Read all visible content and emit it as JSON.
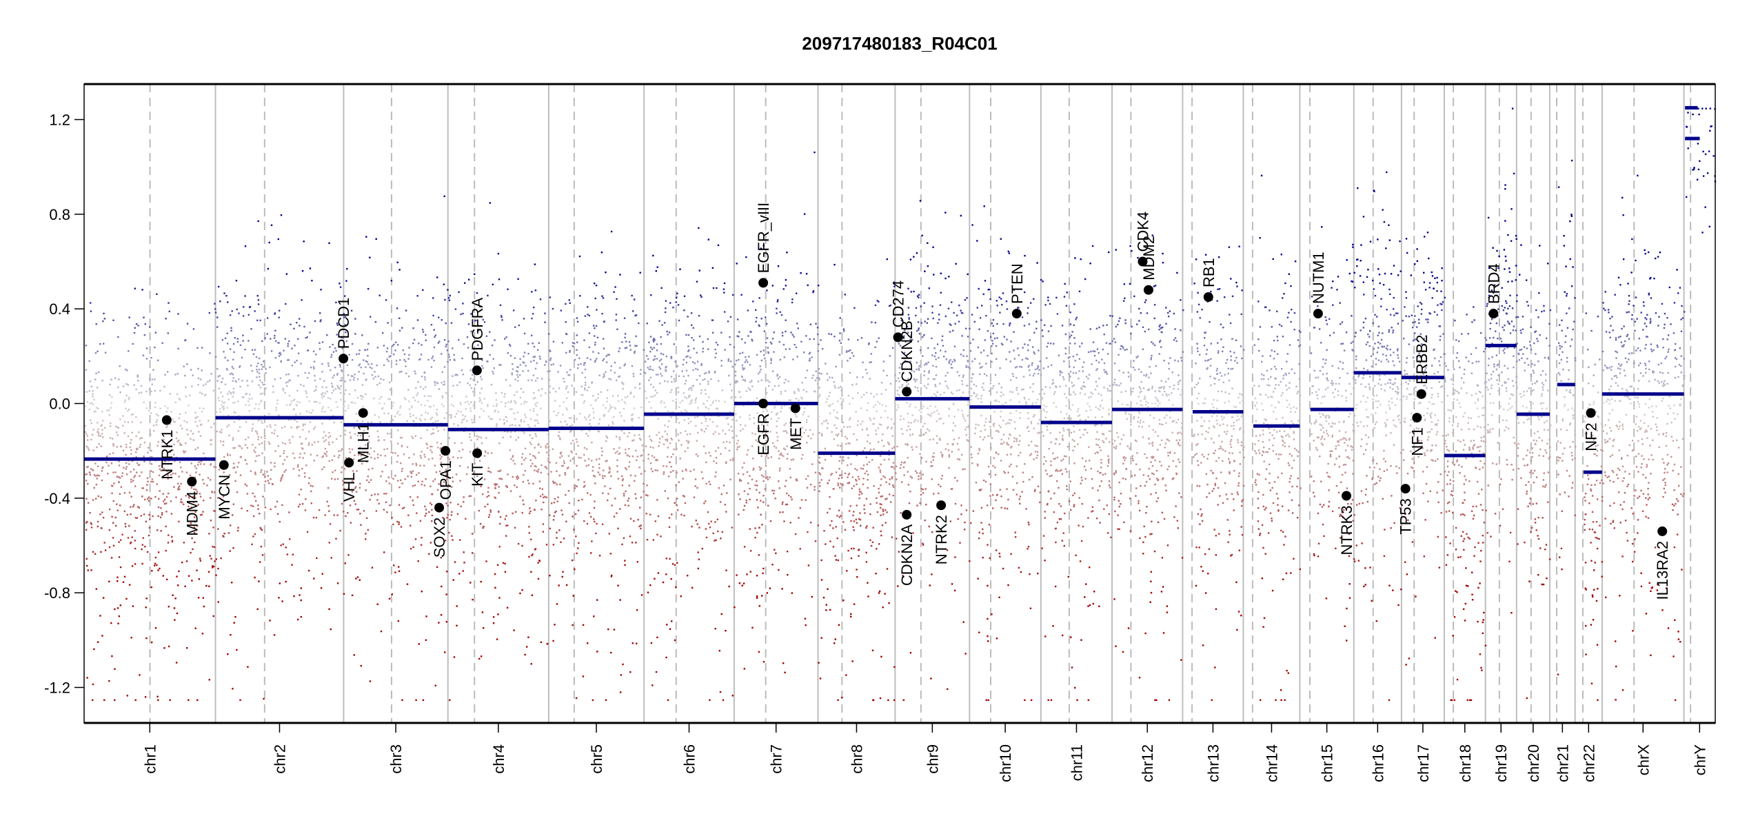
{
  "chart_data": {
    "type": "scatter",
    "title": "209717480183_R04C01",
    "xlabel": "",
    "ylabel": "",
    "ylim": [
      -1.35,
      1.35
    ],
    "clip": [
      -1.25,
      1.25
    ],
    "yticks": [
      -1.2,
      -0.8,
      -0.4,
      0.0,
      0.4,
      0.8,
      1.2
    ],
    "ytick_labels": [
      "-1.2",
      "-0.8",
      "-0.4",
      "0.0",
      "0.4",
      "0.8",
      "1.2"
    ],
    "grid": "chromosome boundaries (solid) and centromeres (dashed)",
    "colors": {
      "gain": "#00008b",
      "neutral": "#d3d3d3",
      "loss": "#a00000",
      "segment": "#00008b",
      "gene": "#000000",
      "boundary": "#bebebe"
    },
    "chromosomes": [
      {
        "name": "chr1",
        "length_mb": 249.3,
        "centromere_mb": 125.0,
        "segments": [
          {
            "start": 0,
            "end": 249.3,
            "mean": -0.235
          }
        ]
      },
      {
        "name": "chr2",
        "length_mb": 243.2,
        "centromere_mb": 93.3,
        "segments": [
          {
            "start": 0,
            "end": 243.2,
            "mean": -0.06
          }
        ]
      },
      {
        "name": "chr3",
        "length_mb": 198.0,
        "centromere_mb": 91.0,
        "segments": [
          {
            "start": 0,
            "end": 198.0,
            "mean": -0.09
          }
        ]
      },
      {
        "name": "chr4",
        "length_mb": 191.2,
        "centromere_mb": 50.4,
        "segments": [
          {
            "start": 0,
            "end": 191.2,
            "mean": -0.11
          }
        ]
      },
      {
        "name": "chr5",
        "length_mb": 180.9,
        "centromere_mb": 48.4,
        "segments": [
          {
            "start": 0,
            "end": 180.9,
            "mean": -0.105
          }
        ]
      },
      {
        "name": "chr6",
        "length_mb": 171.1,
        "centromere_mb": 61.0,
        "segments": [
          {
            "start": 0,
            "end": 171.1,
            "mean": -0.045
          }
        ]
      },
      {
        "name": "chr7",
        "length_mb": 159.1,
        "centromere_mb": 59.9,
        "segments": [
          {
            "start": 0,
            "end": 159.1,
            "mean": 0.0
          }
        ]
      },
      {
        "name": "chr8",
        "length_mb": 146.4,
        "centromere_mb": 45.6,
        "segments": [
          {
            "start": 0,
            "end": 146.4,
            "mean": -0.21
          }
        ]
      },
      {
        "name": "chr9",
        "length_mb": 141.2,
        "centromere_mb": 49.0,
        "segments": [
          {
            "start": 0,
            "end": 141.2,
            "mean": 0.02
          }
        ]
      },
      {
        "name": "chr10",
        "length_mb": 135.5,
        "centromere_mb": 40.2,
        "segments": [
          {
            "start": 0,
            "end": 135.5,
            "mean": -0.015
          }
        ]
      },
      {
        "name": "chr11",
        "length_mb": 135.0,
        "centromere_mb": 53.7,
        "segments": [
          {
            "start": 0,
            "end": 135.0,
            "mean": -0.08
          }
        ]
      },
      {
        "name": "chr12",
        "length_mb": 133.9,
        "centromere_mb": 35.8,
        "segments": [
          {
            "start": 0,
            "end": 133.9,
            "mean": -0.025
          }
        ]
      },
      {
        "name": "chr13",
        "length_mb": 115.2,
        "centromere_mb": 17.9,
        "segments": [
          {
            "start": 19,
            "end": 115.2,
            "mean": -0.035
          }
        ]
      },
      {
        "name": "chr14",
        "length_mb": 107.3,
        "centromere_mb": 17.6,
        "segments": [
          {
            "start": 19,
            "end": 107.3,
            "mean": -0.095
          }
        ]
      },
      {
        "name": "chr15",
        "length_mb": 102.5,
        "centromere_mb": 19.0,
        "segments": [
          {
            "start": 20,
            "end": 102.5,
            "mean": -0.025
          }
        ]
      },
      {
        "name": "chr16",
        "length_mb": 90.4,
        "centromere_mb": 36.6,
        "segments": [
          {
            "start": 0,
            "end": 90.4,
            "mean": 0.13
          }
        ]
      },
      {
        "name": "chr17",
        "length_mb": 81.2,
        "centromere_mb": 24.0,
        "segments": [
          {
            "start": 0,
            "end": 81.2,
            "mean": 0.11
          }
        ]
      },
      {
        "name": "chr18",
        "length_mb": 78.1,
        "centromere_mb": 17.2,
        "segments": [
          {
            "start": 0,
            "end": 78.1,
            "mean": -0.22
          }
        ]
      },
      {
        "name": "chr19",
        "length_mb": 59.1,
        "centromere_mb": 26.5,
        "segments": [
          {
            "start": 0,
            "end": 59.1,
            "mean": 0.245
          }
        ]
      },
      {
        "name": "chr20",
        "length_mb": 63.0,
        "centromere_mb": 27.5,
        "segments": [
          {
            "start": 0,
            "end": 63.0,
            "mean": -0.045
          }
        ]
      },
      {
        "name": "chr21",
        "length_mb": 48.1,
        "centromere_mb": 13.2,
        "segments": [
          {
            "start": 14,
            "end": 48.1,
            "mean": 0.08
          }
        ]
      },
      {
        "name": "chr22",
        "length_mb": 51.3,
        "centromere_mb": 14.7,
        "segments": [
          {
            "start": 16,
            "end": 51.3,
            "mean": -0.29
          }
        ]
      },
      {
        "name": "chrX",
        "length_mb": 155.3,
        "centromere_mb": 60.6,
        "segments": [
          {
            "start": 0,
            "end": 155.3,
            "mean": 0.04
          }
        ]
      },
      {
        "name": "chrY",
        "length_mb": 59.4,
        "centromere_mb": 12.5,
        "segments": [
          {
            "start": 2,
            "end": 26,
            "mean": 1.25
          },
          {
            "start": 2,
            "end": 30,
            "mean": 1.12
          }
        ]
      }
    ],
    "genes": [
      {
        "label": "NTRK1",
        "chr": "chr1",
        "pos_mb": 156.8,
        "value": -0.07
      },
      {
        "label": "MDM4",
        "chr": "chr1",
        "pos_mb": 204.5,
        "value": -0.33
      },
      {
        "label": "MYCN",
        "chr": "chr2",
        "pos_mb": 16.0,
        "value": -0.26
      },
      {
        "label": "PDCD1",
        "chr": "chr2",
        "pos_mb": 242.8,
        "value": 0.19
      },
      {
        "label": "VHL",
        "chr": "chr3",
        "pos_mb": 10.2,
        "value": -0.25
      },
      {
        "label": "MLH1",
        "chr": "chr3",
        "pos_mb": 37.0,
        "value": -0.04
      },
      {
        "label": "SOX2",
        "chr": "chr3",
        "pos_mb": 181.4,
        "value": -0.44
      },
      {
        "label": "OPA1",
        "chr": "chr3",
        "pos_mb": 193.3,
        "value": -0.2
      },
      {
        "label": "PDGFRA",
        "chr": "chr4",
        "pos_mb": 55.1,
        "value": 0.14
      },
      {
        "label": "KIT",
        "chr": "chr4",
        "pos_mb": 55.5,
        "value": -0.21
      },
      {
        "label": "EGFR",
        "chr": "chr7",
        "pos_mb": 55.1,
        "value": 0.0
      },
      {
        "label": "EGFR_vIII",
        "chr": "chr7",
        "pos_mb": 55.2,
        "value": 0.51
      },
      {
        "label": "MET",
        "chr": "chr7",
        "pos_mb": 116.3,
        "value": -0.02
      },
      {
        "label": "CD274",
        "chr": "chr9",
        "pos_mb": 5.45,
        "value": 0.28
      },
      {
        "label": "CDKN2B",
        "chr": "chr9",
        "pos_mb": 22.0,
        "value": 0.05
      },
      {
        "label": "CDKN2A",
        "chr": "chr9",
        "pos_mb": 21.97,
        "value": -0.47
      },
      {
        "label": "NTRK2",
        "chr": "chr9",
        "pos_mb": 87.3,
        "value": -0.43
      },
      {
        "label": "PTEN",
        "chr": "chr10",
        "pos_mb": 89.6,
        "value": 0.38
      },
      {
        "label": "CDK4",
        "chr": "chr12",
        "pos_mb": 58.1,
        "value": 0.6
      },
      {
        "label": "MDM2",
        "chr": "chr12",
        "pos_mb": 69.2,
        "value": 0.48
      },
      {
        "label": "RB1",
        "chr": "chr13",
        "pos_mb": 48.9,
        "value": 0.45
      },
      {
        "label": "NUTM1",
        "chr": "chr15",
        "pos_mb": 34.6,
        "value": 0.38
      },
      {
        "label": "NTRK3",
        "chr": "chr15",
        "pos_mb": 88.4,
        "value": -0.39
      },
      {
        "label": "TP53",
        "chr": "chr17",
        "pos_mb": 7.5,
        "value": -0.36
      },
      {
        "label": "NF1",
        "chr": "chr17",
        "pos_mb": 29.4,
        "value": -0.06
      },
      {
        "label": "ERBB2",
        "chr": "chr17",
        "pos_mb": 37.8,
        "value": 0.04
      },
      {
        "label": "BRD4",
        "chr": "chr19",
        "pos_mb": 15.3,
        "value": 0.38
      },
      {
        "label": "NF2",
        "chr": "chr22",
        "pos_mb": 29.9,
        "value": -0.04
      },
      {
        "label": "IL13RA2",
        "chr": "chrX",
        "pos_mb": 114.2,
        "value": -0.54
      }
    ]
  }
}
